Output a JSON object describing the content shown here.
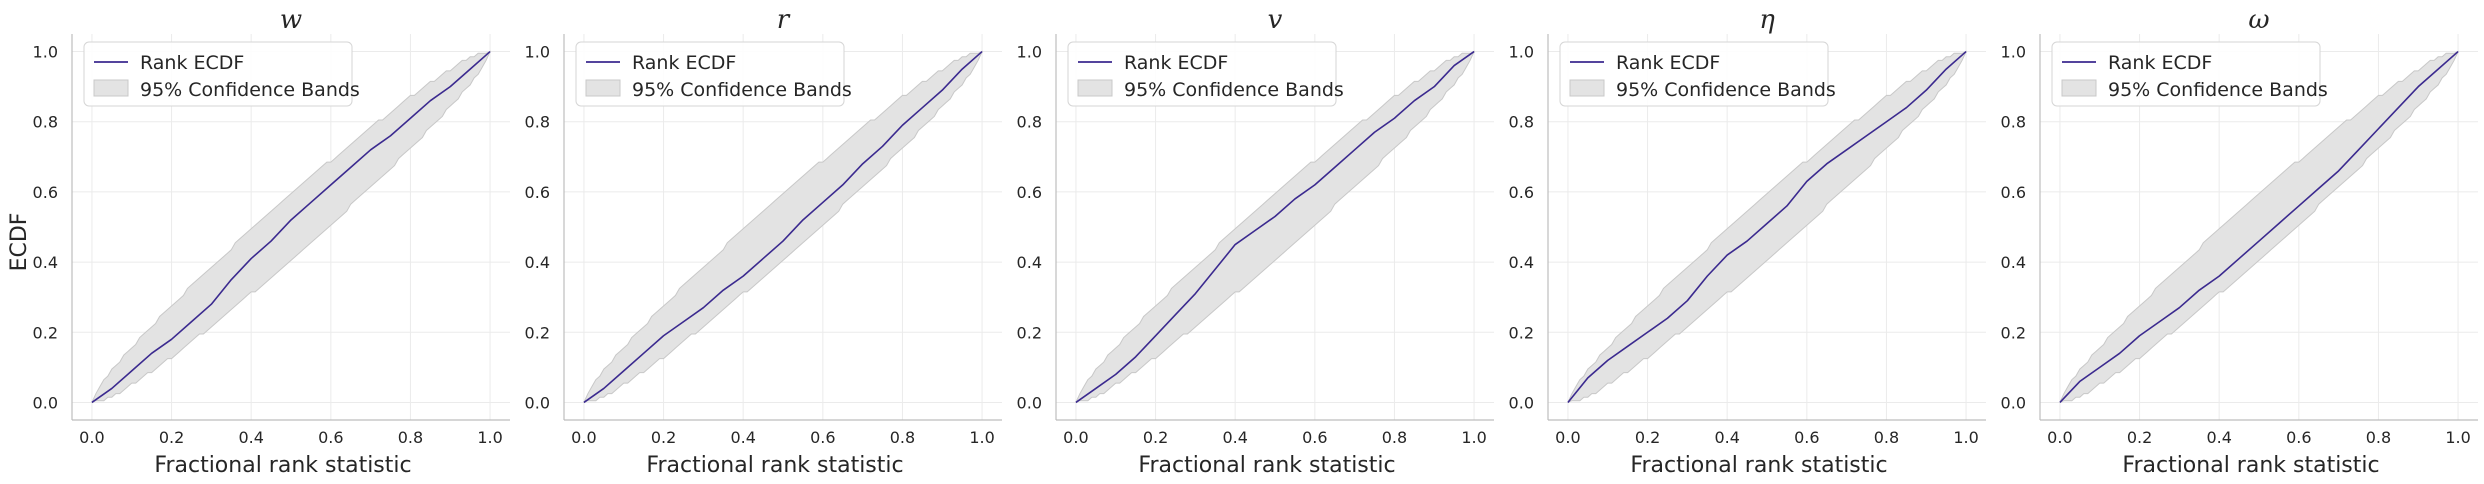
{
  "figure": {
    "ylabel": "ECDF",
    "xlabel": "Fractional rank statistic",
    "legend": {
      "line_label": "Rank ECDF",
      "band_label": "95% Confidence Bands",
      "placement": "upper-left"
    },
    "colors": {
      "line": "#3b2a8f",
      "band_fill": "#e3e3e3",
      "band_edge": "#c8c8c8",
      "grid": "#ebebeb",
      "spine": "#bdbdbd"
    }
  },
  "chart_data": [
    {
      "type": "line",
      "title": "w",
      "xlabel": "Fractional rank statistic",
      "ylabel": "ECDF",
      "xlim": [
        -0.05,
        1.05
      ],
      "ylim": [
        -0.05,
        1.05
      ],
      "xticks": [
        "0.0",
        "0.2",
        "0.4",
        "0.6",
        "0.8",
        "1.0"
      ],
      "yticks": [
        "0.0",
        "0.2",
        "0.4",
        "0.6",
        "0.8",
        "1.0"
      ],
      "grid": true,
      "legend": "upper-left",
      "series": [
        {
          "name": "Rank ECDF",
          "x": [
            0,
            0.05,
            0.1,
            0.15,
            0.2,
            0.25,
            0.3,
            0.35,
            0.4,
            0.45,
            0.5,
            0.55,
            0.6,
            0.65,
            0.7,
            0.75,
            0.8,
            0.85,
            0.9,
            0.95,
            1.0
          ],
          "y": [
            0,
            0.04,
            0.09,
            0.14,
            0.18,
            0.23,
            0.28,
            0.35,
            0.41,
            0.46,
            0.52,
            0.57,
            0.62,
            0.67,
            0.72,
            0.76,
            0.81,
            0.86,
            0.9,
            0.95,
            1.0
          ]
        }
      ]
    },
    {
      "type": "line",
      "title": "r",
      "xlabel": "Fractional rank statistic",
      "ylabel": "",
      "xlim": [
        -0.05,
        1.05
      ],
      "ylim": [
        -0.05,
        1.05
      ],
      "xticks": [
        "0.0",
        "0.2",
        "0.4",
        "0.6",
        "0.8",
        "1.0"
      ],
      "yticks": [
        "0.0",
        "0.2",
        "0.4",
        "0.6",
        "0.8",
        "1.0"
      ],
      "grid": true,
      "legend": "upper-left",
      "series": [
        {
          "name": "Rank ECDF",
          "x": [
            0,
            0.05,
            0.1,
            0.15,
            0.2,
            0.25,
            0.3,
            0.35,
            0.4,
            0.45,
            0.5,
            0.55,
            0.6,
            0.65,
            0.7,
            0.75,
            0.8,
            0.85,
            0.9,
            0.95,
            1.0
          ],
          "y": [
            0,
            0.04,
            0.09,
            0.14,
            0.19,
            0.23,
            0.27,
            0.32,
            0.36,
            0.41,
            0.46,
            0.52,
            0.57,
            0.62,
            0.68,
            0.73,
            0.79,
            0.84,
            0.89,
            0.95,
            1.0
          ]
        }
      ]
    },
    {
      "type": "line",
      "title": "v",
      "xlabel": "Fractional rank statistic",
      "ylabel": "",
      "xlim": [
        -0.05,
        1.05
      ],
      "ylim": [
        -0.05,
        1.05
      ],
      "xticks": [
        "0.0",
        "0.2",
        "0.4",
        "0.6",
        "0.8",
        "1.0"
      ],
      "yticks": [
        "0.0",
        "0.2",
        "0.4",
        "0.6",
        "0.8",
        "1.0"
      ],
      "grid": true,
      "legend": "upper-left",
      "series": [
        {
          "name": "Rank ECDF",
          "x": [
            0,
            0.05,
            0.1,
            0.15,
            0.2,
            0.25,
            0.3,
            0.35,
            0.4,
            0.45,
            0.5,
            0.55,
            0.6,
            0.65,
            0.7,
            0.75,
            0.8,
            0.85,
            0.9,
            0.95,
            1.0
          ],
          "y": [
            0,
            0.04,
            0.08,
            0.13,
            0.19,
            0.25,
            0.31,
            0.38,
            0.45,
            0.49,
            0.53,
            0.58,
            0.62,
            0.67,
            0.72,
            0.77,
            0.81,
            0.86,
            0.9,
            0.96,
            1.0
          ]
        }
      ]
    },
    {
      "type": "line",
      "title": "η",
      "xlabel": "Fractional rank statistic",
      "ylabel": "",
      "xlim": [
        -0.05,
        1.05
      ],
      "ylim": [
        -0.05,
        1.05
      ],
      "xticks": [
        "0.0",
        "0.2",
        "0.4",
        "0.6",
        "0.8",
        "1.0"
      ],
      "yticks": [
        "0.0",
        "0.2",
        "0.4",
        "0.6",
        "0.8",
        "1.0"
      ],
      "grid": true,
      "legend": "upper-left",
      "series": [
        {
          "name": "Rank ECDF",
          "x": [
            0,
            0.05,
            0.1,
            0.15,
            0.2,
            0.25,
            0.3,
            0.35,
            0.4,
            0.45,
            0.5,
            0.55,
            0.6,
            0.65,
            0.7,
            0.75,
            0.8,
            0.85,
            0.9,
            0.95,
            1.0
          ],
          "y": [
            0,
            0.07,
            0.12,
            0.16,
            0.2,
            0.24,
            0.29,
            0.36,
            0.42,
            0.46,
            0.51,
            0.56,
            0.63,
            0.68,
            0.72,
            0.76,
            0.8,
            0.84,
            0.89,
            0.95,
            1.0
          ]
        }
      ]
    },
    {
      "type": "line",
      "title": "ω",
      "xlabel": "Fractional rank statistic",
      "ylabel": "",
      "xlim": [
        -0.05,
        1.05
      ],
      "ylim": [
        -0.05,
        1.05
      ],
      "xticks": [
        "0.0",
        "0.2",
        "0.4",
        "0.6",
        "0.8",
        "1.0"
      ],
      "yticks": [
        "0.0",
        "0.2",
        "0.4",
        "0.6",
        "0.8",
        "1.0"
      ],
      "grid": true,
      "legend": "upper-left",
      "series": [
        {
          "name": "Rank ECDF",
          "x": [
            0,
            0.05,
            0.1,
            0.15,
            0.2,
            0.25,
            0.3,
            0.35,
            0.4,
            0.45,
            0.5,
            0.55,
            0.6,
            0.65,
            0.7,
            0.75,
            0.8,
            0.85,
            0.9,
            0.95,
            1.0
          ],
          "y": [
            0,
            0.06,
            0.1,
            0.14,
            0.19,
            0.23,
            0.27,
            0.32,
            0.36,
            0.41,
            0.46,
            0.51,
            0.56,
            0.61,
            0.66,
            0.72,
            0.78,
            0.84,
            0.9,
            0.95,
            1.0
          ]
        }
      ]
    }
  ]
}
